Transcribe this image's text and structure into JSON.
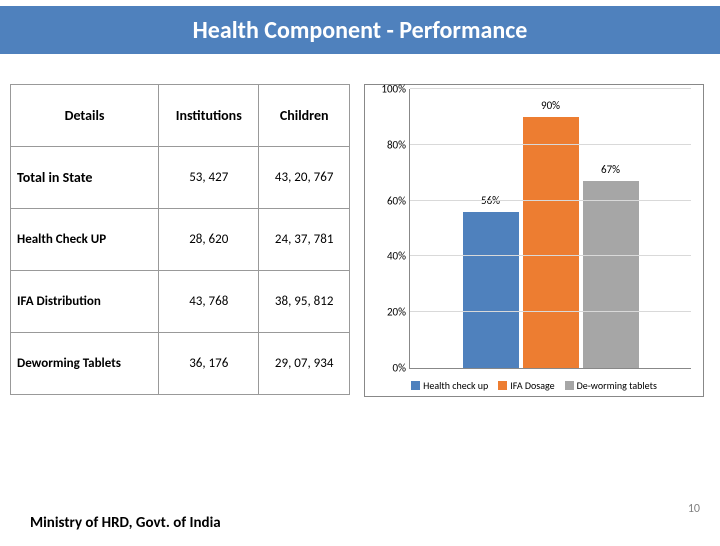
{
  "title": "Health Component - Performance",
  "table": {
    "columns": [
      "Details",
      "Institutions",
      "Children"
    ],
    "rows": [
      {
        "label": "Total in State",
        "institutions": "53, 427",
        "children": "43, 20, 767",
        "cls": "total"
      },
      {
        "label": "Health Check UP",
        "institutions": "28, 620",
        "children": "24, 37, 781",
        "cls": ""
      },
      {
        "label": "IFA Distribution",
        "institutions": "43, 768",
        "children": "38, 95, 812",
        "cls": ""
      },
      {
        "label": "Deworming Tablets",
        "institutions": "36, 176",
        "children": "29, 07, 934",
        "cls": ""
      }
    ]
  },
  "chart": {
    "type": "bar",
    "ylim": [
      0,
      100
    ],
    "ytick_step": 20,
    "ytick_suffix": "%",
    "grid_color": "#d9d9d9",
    "background_color": "#ffffff",
    "label_fontsize": 11,
    "series": [
      {
        "name": "Health check up",
        "value": 56,
        "label": "56%",
        "color": "#4f81bd"
      },
      {
        "name": "IFA Dosage",
        "value": 90,
        "label": "90%",
        "color": "#ed7d31"
      },
      {
        "name": "De-worming tablets",
        "value": 67,
        "label": "67%",
        "color": "#a6a6a6"
      }
    ]
  },
  "footer": "Ministry of HRD, Govt. of India",
  "page_number": "10"
}
